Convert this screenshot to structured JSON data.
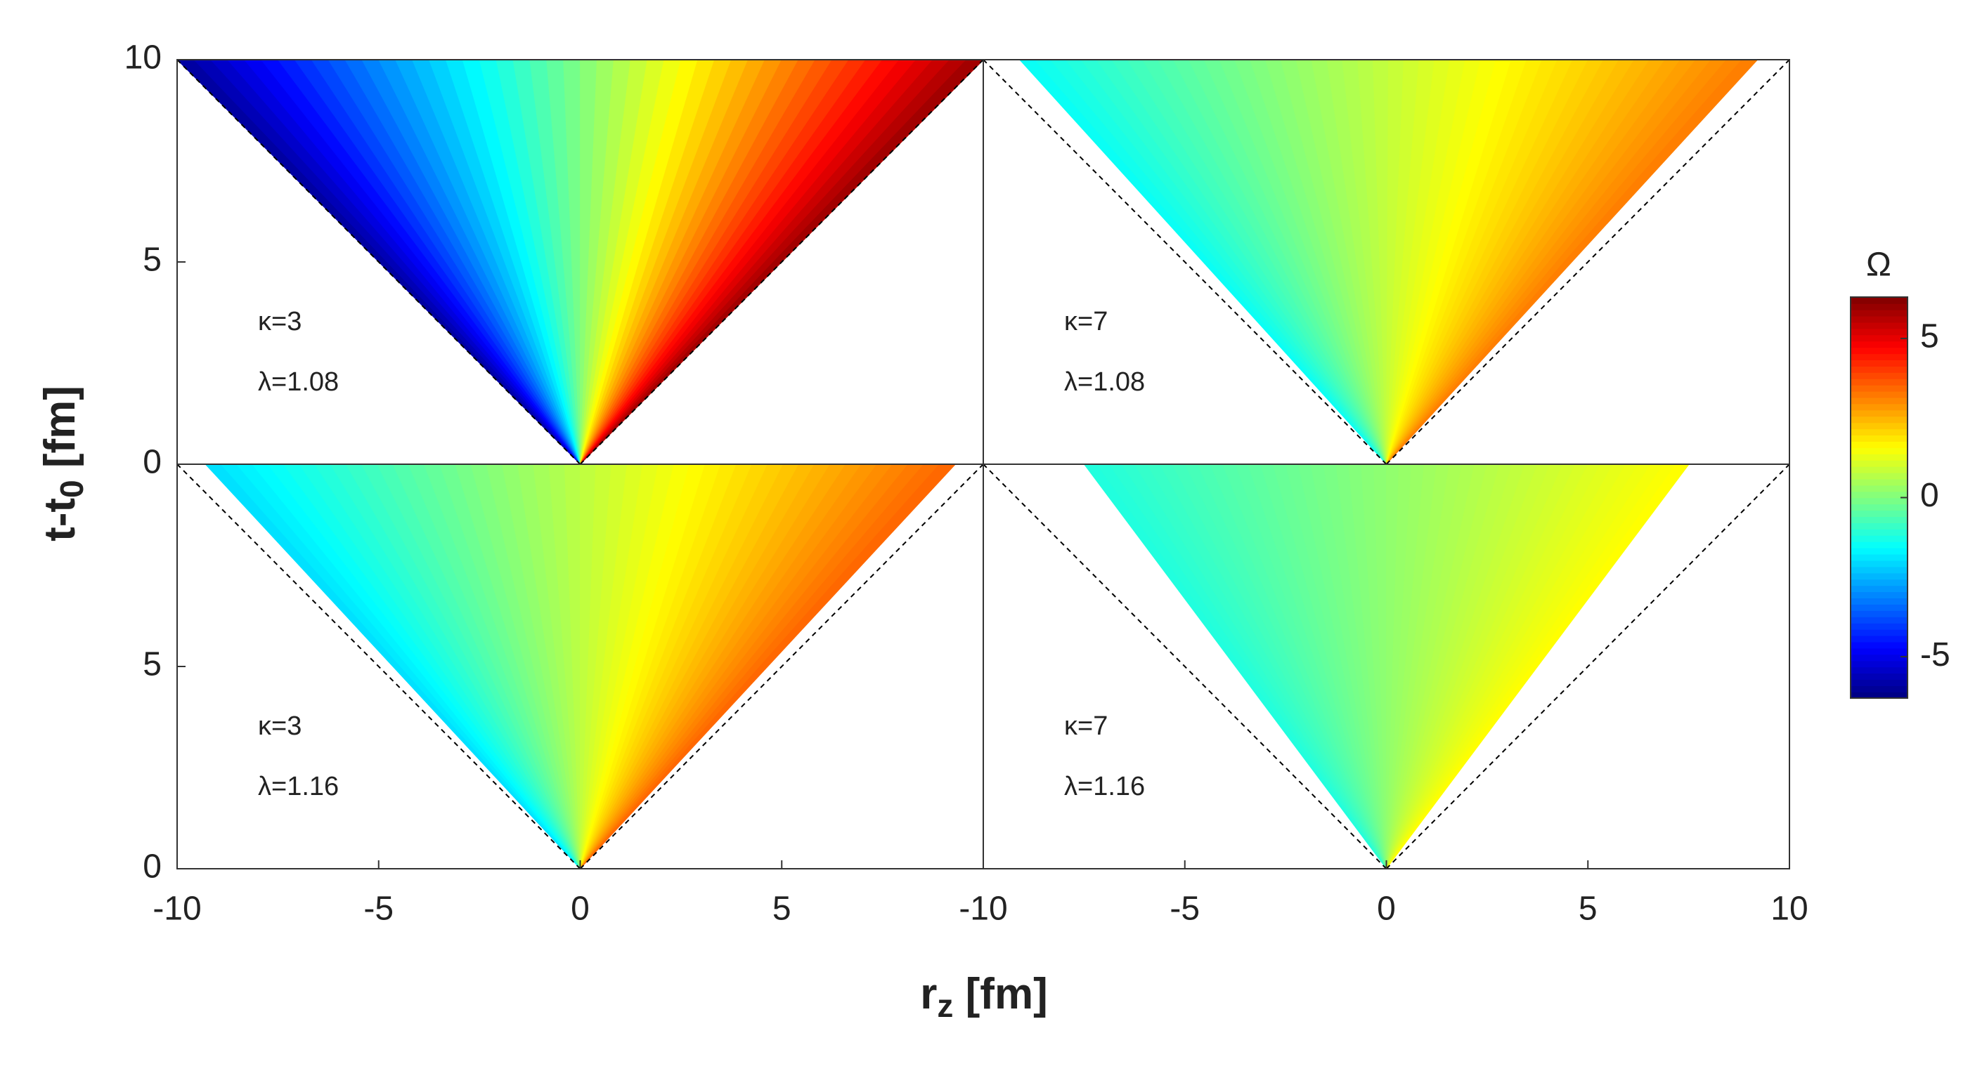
{
  "chart_data": [
    {
      "type": "contour",
      "annotations": [
        "κ=3",
        "λ=1.08"
      ],
      "top_edges": [
        -10,
        10
      ],
      "omega_edges": [
        -6,
        6
      ],
      "xlim": [
        -10,
        10
      ],
      "ylim": [
        0,
        10
      ],
      "xticks": [],
      "yticks": [
        0,
        5,
        10
      ]
    },
    {
      "type": "contour",
      "annotations": [
        "κ=7",
        "λ=1.08"
      ],
      "top_edges": [
        -9.1,
        9.2
      ],
      "omega_edges": [
        -1.5,
        3.2
      ],
      "xlim": [
        -10,
        10
      ],
      "ylim": [
        0,
        10
      ],
      "xticks": [],
      "yticks": []
    },
    {
      "type": "contour",
      "annotations": [
        "κ=3",
        "λ=1.16"
      ],
      "top_edges": [
        -9.3,
        9.3
      ],
      "omega_edges": [
        -2,
        3.5
      ],
      "xlim": [
        -10,
        10
      ],
      "ylim": [
        0,
        10
      ],
      "xticks": [
        -10,
        -5,
        0,
        5
      ],
      "yticks": [
        0,
        5
      ]
    },
    {
      "type": "contour",
      "annotations": [
        "κ=7",
        "λ=1.16"
      ],
      "top_edges": [
        -7.5,
        7.5
      ],
      "omega_edges": [
        -1.2,
        1.6
      ],
      "xlim": [
        -10,
        10
      ],
      "ylim": [
        0,
        10
      ],
      "xticks": [
        -10,
        -5,
        0,
        5,
        10
      ],
      "yticks": []
    }
  ],
  "xlabel": {
    "main": "r",
    "sub": "z",
    "rest": " [fm]"
  },
  "ylabel": {
    "main": "t-t",
    "sub": "0",
    "rest": " [fm]"
  },
  "colorbar": {
    "title": "Ω",
    "clim": [
      -6.3,
      6.3
    ],
    "ticks": [
      -5,
      0,
      5
    ]
  }
}
